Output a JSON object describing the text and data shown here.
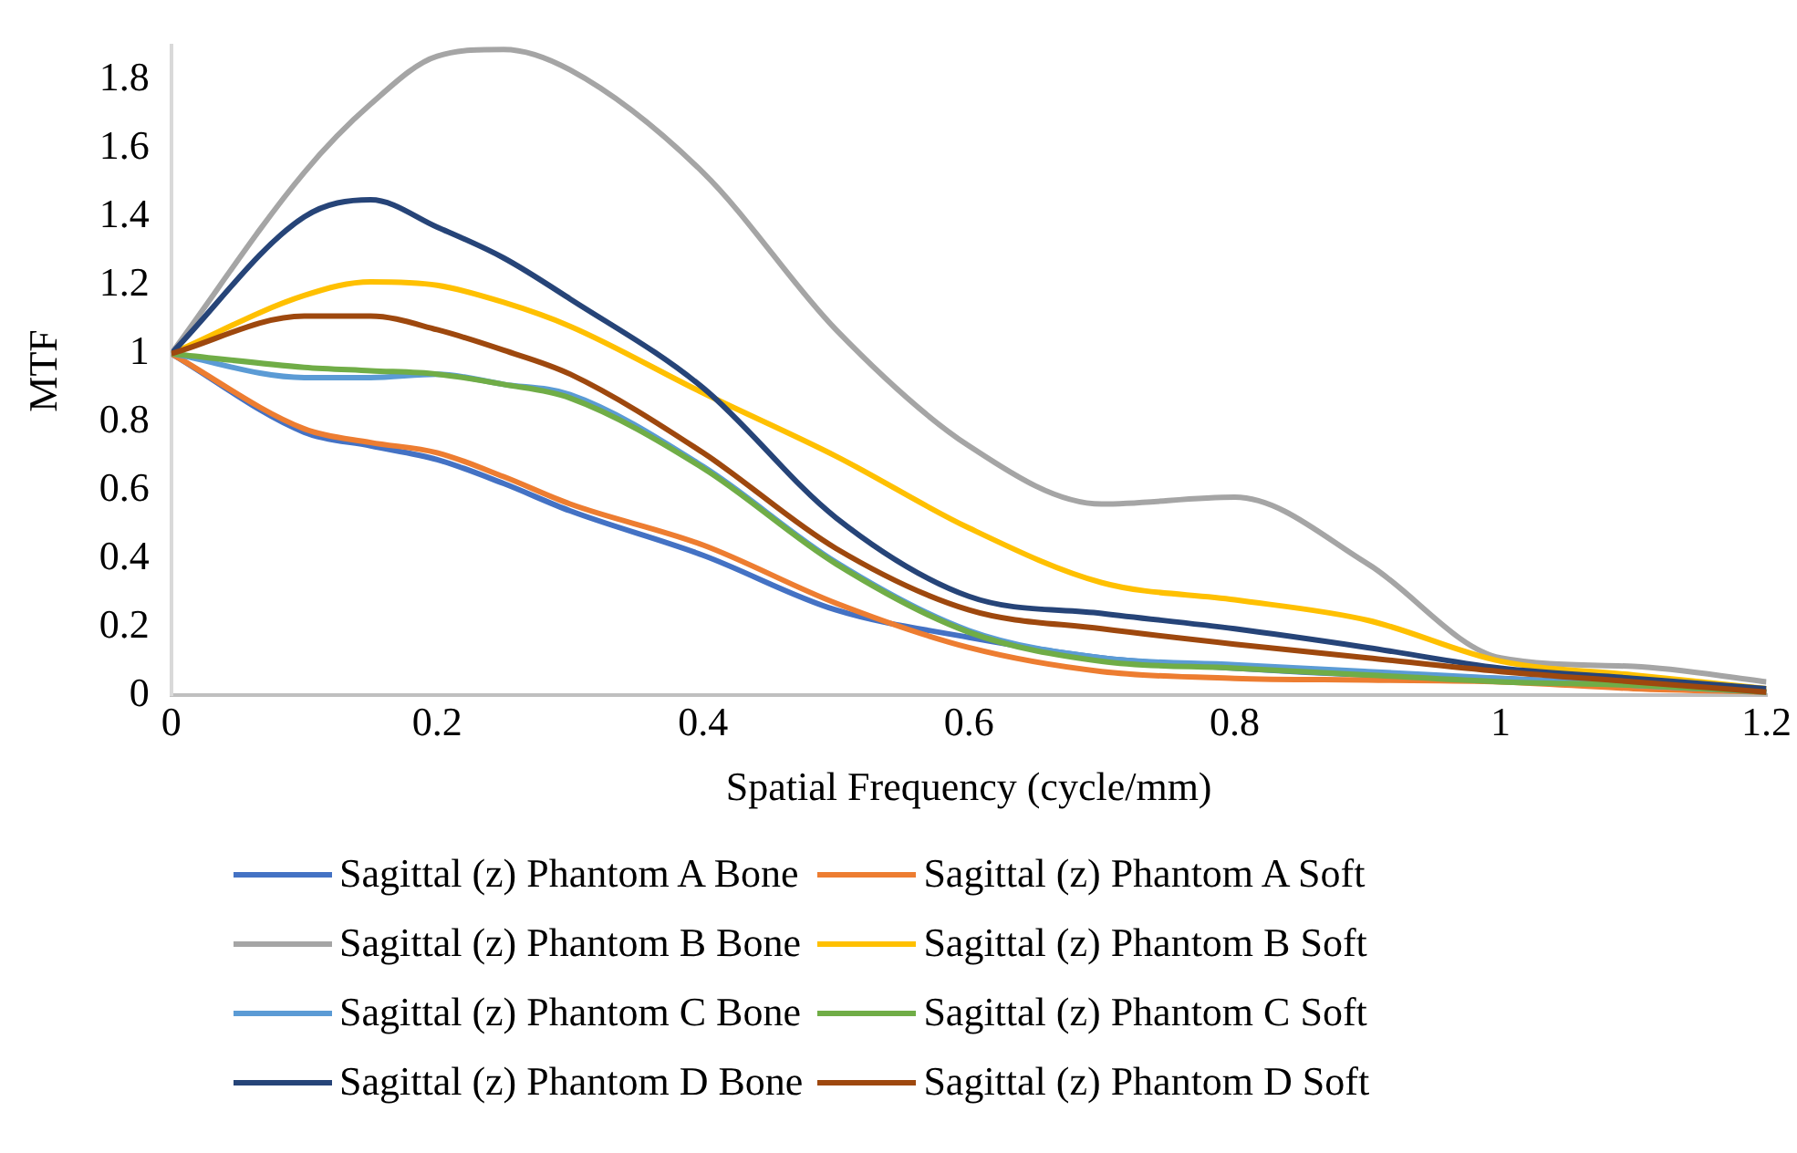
{
  "chart_data": {
    "type": "line",
    "xlabel": "Spatial Frequency (cycle/mm)",
    "ylabel": "MTF",
    "x": [
      0,
      0.1,
      0.15,
      0.2,
      0.25,
      0.3,
      0.4,
      0.5,
      0.6,
      0.7,
      0.8,
      0.9,
      1,
      1.1,
      1.2
    ],
    "xlim": [
      0,
      1.2
    ],
    "xticks": [
      0,
      0.2,
      0.4,
      0.6,
      0.8,
      1,
      1.2
    ],
    "ylim": [
      0,
      1.9
    ],
    "yticks": [
      0,
      0.2,
      0.4,
      0.6,
      0.8,
      1,
      1.2,
      1.4,
      1.6,
      1.8
    ],
    "grid": false,
    "legend": "bottom",
    "marker": "none",
    "line_style": "solid",
    "series": [
      {
        "name": "Sagittal (z) Phantom A Bone",
        "color": "#4472c4",
        "values": [
          1,
          0.77,
          0.73,
          0.69,
          0.62,
          0.54,
          0.41,
          0.25,
          0.17,
          0.11,
          0.08,
          0.06,
          0.05,
          0.03,
          0.01
        ]
      },
      {
        "name": "Sagittal (z) Phantom A Soft",
        "color": "#ed7d31",
        "values": [
          1,
          0.78,
          0.74,
          0.71,
          0.64,
          0.56,
          0.44,
          0.27,
          0.14,
          0.07,
          0.05,
          0.045,
          0.04,
          0.02,
          0.01
        ]
      },
      {
        "name": "Sagittal (z) Phantom B Bone",
        "color": "#a5a5a5",
        "values": [
          1,
          1.53,
          1.73,
          1.87,
          1.89,
          1.83,
          1.53,
          1.07,
          0.73,
          0.56,
          0.58,
          0.385,
          0.11,
          0.085,
          0.04
        ]
      },
      {
        "name": "Sagittal (z) Phantom B Soft",
        "color": "#ffc000",
        "values": [
          1,
          1.17,
          1.21,
          1.2,
          1.15,
          1.08,
          0.885,
          0.7,
          0.49,
          0.33,
          0.28,
          0.22,
          0.1,
          0.06,
          0.02
        ]
      },
      {
        "name": "Sagittal (z) Phantom C Bone",
        "color": "#5b9bd5",
        "values": [
          1,
          0.93,
          0.93,
          0.94,
          0.91,
          0.88,
          0.67,
          0.39,
          0.19,
          0.11,
          0.09,
          0.07,
          0.05,
          0.03,
          0.01
        ]
      },
      {
        "name": "Sagittal (z) Phantom C Soft",
        "color": "#70ad47",
        "values": [
          1,
          0.96,
          0.95,
          0.94,
          0.91,
          0.87,
          0.665,
          0.385,
          0.185,
          0.1,
          0.08,
          0.06,
          0.04,
          0.03,
          0.01
        ]
      },
      {
        "name": "Sagittal (z) Phantom D Bone",
        "color": "#264478",
        "values": [
          1,
          1.4,
          1.45,
          1.37,
          1.28,
          1.16,
          0.9,
          0.52,
          0.29,
          0.24,
          0.195,
          0.14,
          0.08,
          0.05,
          0.02
        ]
      },
      {
        "name": "Sagittal (z) Phantom D Soft",
        "color": "#9e480e",
        "values": [
          1,
          1.11,
          1.11,
          1.07,
          1.01,
          0.94,
          0.71,
          0.43,
          0.25,
          0.195,
          0.15,
          0.11,
          0.07,
          0.04,
          0.01
        ]
      }
    ]
  }
}
